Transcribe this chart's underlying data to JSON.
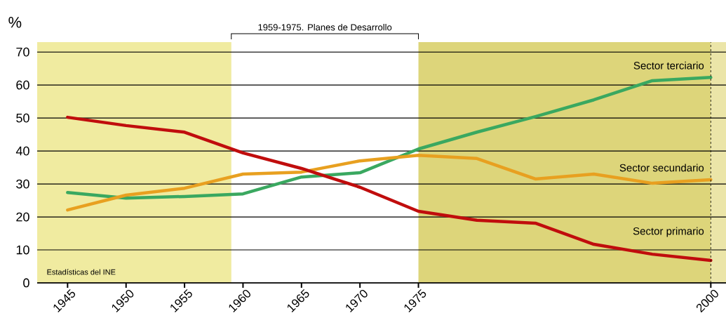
{
  "chart_data": {
    "type": "line",
    "ylabel": "%",
    "x": [
      1945,
      1950,
      1955,
      1960,
      1965,
      1970,
      1975,
      1980,
      1985,
      1990,
      1995,
      2000
    ],
    "series": [
      {
        "name": "Sector terciario",
        "color": "#3aa860",
        "values": [
          27.4,
          25.7,
          26.2,
          27,
          32.1,
          33.4,
          40.6,
          45.7,
          50.4,
          55.5,
          61.3,
          62.3
        ]
      },
      {
        "name": "Sector secundario",
        "color": "#e8a020",
        "values": [
          22.1,
          26.6,
          28.7,
          33,
          33.6,
          37,
          38.7,
          37.7,
          31.5,
          33,
          30.2,
          31.3
        ]
      },
      {
        "name": "Sector primario",
        "color": "#c00d0d",
        "values": [
          50.2,
          47.7,
          45.7,
          39.4,
          34.7,
          29,
          21.7,
          19,
          18.1,
          11.7,
          8.7,
          6.8
        ]
      }
    ],
    "xlim": [
      1942.4,
      2001.3
    ],
    "ylim": [
      0,
      73
    ],
    "xticks": [
      1945,
      1950,
      1955,
      1960,
      1965,
      1970,
      1975,
      2000
    ],
    "yticks": [
      0,
      10,
      20,
      30,
      40,
      50,
      60,
      70
    ],
    "grid": "y",
    "marker": "none",
    "line_style": "solid",
    "bands": [
      {
        "axis": "x",
        "from": 1942.4,
        "to": 1959,
        "color": "#f0eba0"
      },
      {
        "axis": "x",
        "from": 1975,
        "to": 2000,
        "color": "#ddd57a"
      },
      {
        "axis": "x",
        "from": 2000,
        "to": 2001.3,
        "color": "#ebe5a8"
      }
    ],
    "ref_lines": [
      {
        "axis": "x",
        "value": 2000,
        "line_style": "dashed",
        "color": "#000000"
      }
    ],
    "annotations": [
      "1959-1975. Planes de Desarrollo",
      "Estadísticas del INE"
    ]
  }
}
